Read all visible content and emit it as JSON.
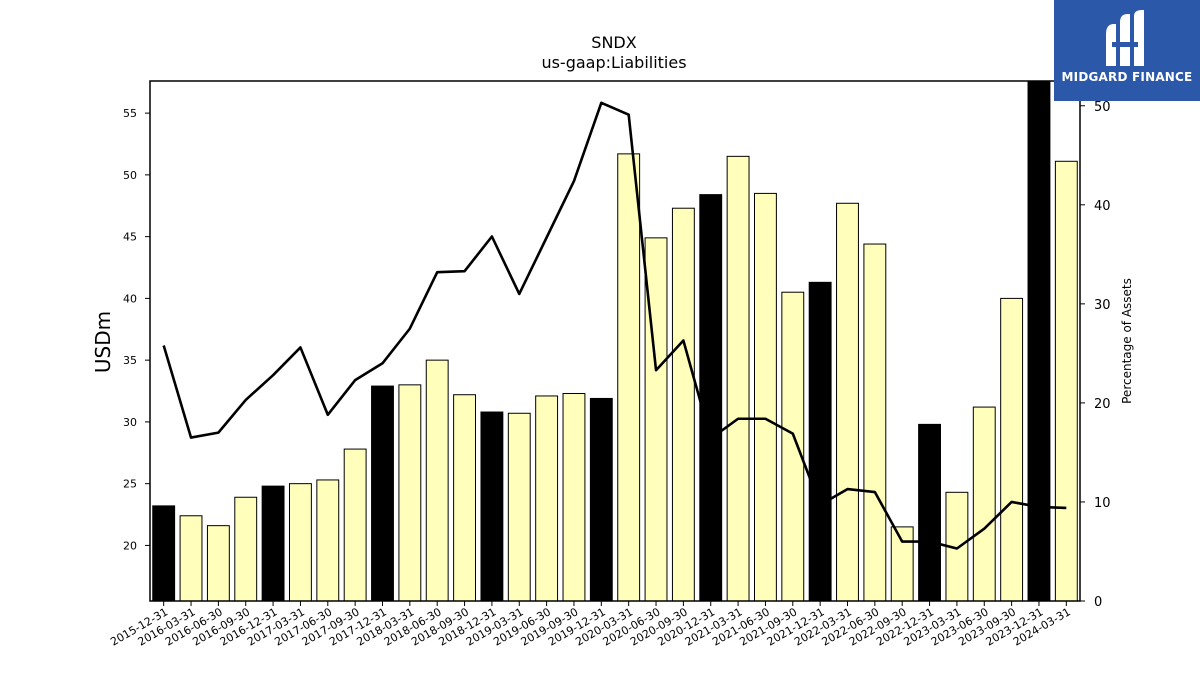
{
  "chart_data": {
    "type": "bar",
    "title": "SNDX",
    "subtitle": "us-gaap:Liabilities",
    "ylabel": "USDm",
    "y2label": "Percentage of Assets",
    "ylim": [
      15.5,
      57.6
    ],
    "y2lim": [
      0,
      52.5
    ],
    "yticks": [
      20,
      25,
      30,
      35,
      40,
      45,
      50,
      55
    ],
    "y2ticks": [
      0,
      10,
      20,
      30,
      40,
      50
    ],
    "categories": [
      "2015-12-31",
      "2016-03-31",
      "2016-06-30",
      "2016-09-30",
      "2016-12-31",
      "2017-03-31",
      "2017-06-30",
      "2017-09-30",
      "2017-12-31",
      "2018-03-31",
      "2018-06-30",
      "2018-09-30",
      "2018-12-31",
      "2019-03-31",
      "2019-06-30",
      "2019-09-30",
      "2019-12-31",
      "2020-03-31",
      "2020-06-30",
      "2020-09-30",
      "2020-12-31",
      "2021-03-31",
      "2021-06-30",
      "2021-09-30",
      "2021-12-31",
      "2022-03-31",
      "2022-06-30",
      "2022-09-30",
      "2022-12-31",
      "2023-03-31",
      "2023-06-30",
      "2023-09-30",
      "2023-12-31",
      "2024-03-31"
    ],
    "series": [
      {
        "values": [
          23.2,
          22.4,
          21.6,
          23.9,
          24.8,
          25.0,
          25.3,
          27.8,
          32.9,
          33.0,
          35.0,
          32.2,
          30.8,
          30.7,
          32.1,
          32.3,
          31.9,
          51.7,
          44.9,
          47.3,
          48.4,
          51.5,
          48.5,
          40.5,
          41.3,
          47.7,
          44.4,
          21.5,
          29.8,
          24.3,
          31.2,
          40.0,
          57.9,
          51.1
        ],
        "highlight": [
          true,
          false,
          false,
          false,
          true,
          false,
          false,
          false,
          true,
          false,
          false,
          false,
          true,
          false,
          false,
          false,
          true,
          false,
          false,
          false,
          true,
          false,
          false,
          false,
          true,
          false,
          false,
          false,
          true,
          false,
          false,
          false,
          true,
          false
        ]
      },
      {
        "axis": "right",
        "type": "line",
        "values": [
          25.8,
          16.5,
          17.0,
          20.3,
          22.8,
          25.6,
          18.8,
          22.3,
          24.0,
          27.5,
          33.2,
          33.3,
          36.8,
          31.0,
          36.7,
          42.4,
          50.3,
          49.1,
          23.3,
          26.3,
          16.4,
          18.4,
          18.4,
          16.9,
          9.7,
          11.3,
          11.0,
          6.0,
          6.0,
          5.3,
          7.3,
          10.0,
          9.5,
          9.4
        ]
      }
    ],
    "colors": {
      "bar": "#ffffbb",
      "bar_highlight": "#000000",
      "line": "#000000",
      "edge": "#000000"
    }
  },
  "logo": {
    "text": "MIDGARD FINANCE"
  }
}
